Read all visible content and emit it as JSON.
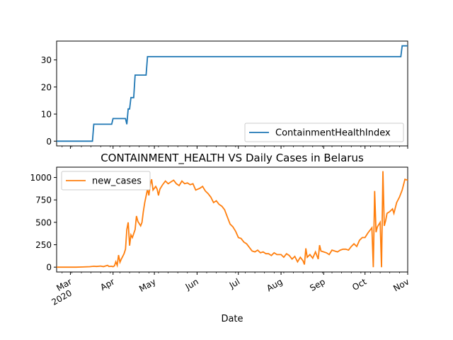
{
  "figure": {
    "title": "CONTAINMENT_HEALTH VS Daily Cases in Belarus",
    "xlabel": "Date"
  },
  "colors": {
    "series1": "#1f77b4",
    "series2": "#ff7f0e"
  },
  "chart_data": [
    {
      "type": "line",
      "title": "",
      "xlabel": "",
      "ylabel": "",
      "xlim": [
        "2020-02-20",
        "2020-11-01"
      ],
      "ylim": [
        -1.76,
        36.96
      ],
      "yticks": [
        0,
        10,
        20,
        30
      ],
      "grid": false,
      "legend": "lower right",
      "series": [
        {
          "name": "ContainmentHealthIndex",
          "color": "#1f77b4",
          "points": [
            [
              "2020-02-20",
              0
            ],
            [
              "2020-03-17",
              0
            ],
            [
              "2020-03-18",
              6.25
            ],
            [
              "2020-03-31",
              6.25
            ],
            [
              "2020-04-01",
              8.33
            ],
            [
              "2020-04-10",
              8.33
            ],
            [
              "2020-04-11",
              6.25
            ],
            [
              "2020-04-12",
              11.9
            ],
            [
              "2020-04-13",
              11.9
            ],
            [
              "2020-04-14",
              16.07
            ],
            [
              "2020-04-16",
              16.07
            ],
            [
              "2020-04-17",
              24.4
            ],
            [
              "2020-04-25",
              24.4
            ],
            [
              "2020-04-26",
              31.2
            ],
            [
              "2020-10-27",
              31.2
            ],
            [
              "2020-10-28",
              35.2
            ],
            [
              "2020-11-01",
              35.2
            ]
          ]
        }
      ]
    },
    {
      "type": "line",
      "title": "",
      "xlabel": "Date",
      "ylabel": "",
      "xlim": [
        "2020-02-20",
        "2020-11-01"
      ],
      "ylim": [
        -54,
        1115
      ],
      "yticks": [
        0,
        250,
        500,
        750,
        1000
      ],
      "xticks": [
        {
          "date": "2020-03-01",
          "label": "Mar",
          "sub": "2020"
        },
        {
          "date": "2020-04-01",
          "label": "Apr",
          "sub": ""
        },
        {
          "date": "2020-05-01",
          "label": "May",
          "sub": ""
        },
        {
          "date": "2020-06-01",
          "label": "Jun",
          "sub": ""
        },
        {
          "date": "2020-07-01",
          "label": "Jul",
          "sub": ""
        },
        {
          "date": "2020-08-01",
          "label": "Aug",
          "sub": ""
        },
        {
          "date": "2020-09-01",
          "label": "Sep",
          "sub": ""
        },
        {
          "date": "2020-10-01",
          "label": "Oct",
          "sub": ""
        },
        {
          "date": "2020-11-01",
          "label": "Nov",
          "sub": ""
        }
      ],
      "grid": false,
      "legend": "upper left",
      "series": [
        {
          "name": "new_cases",
          "color": "#ff7f0e",
          "points": [
            [
              "2020-02-20",
              0
            ],
            [
              "2020-03-05",
              0
            ],
            [
              "2020-03-10",
              2
            ],
            [
              "2020-03-15",
              5
            ],
            [
              "2020-03-18",
              10
            ],
            [
              "2020-03-20",
              8
            ],
            [
              "2020-03-23",
              12
            ],
            [
              "2020-03-25",
              6
            ],
            [
              "2020-03-28",
              20
            ],
            [
              "2020-03-29",
              8
            ],
            [
              "2020-03-31",
              10
            ],
            [
              "2020-04-01",
              5
            ],
            [
              "2020-04-02",
              15
            ],
            [
              "2020-04-03",
              60
            ],
            [
              "2020-04-04",
              20
            ],
            [
              "2020-04-05",
              135
            ],
            [
              "2020-04-06",
              55
            ],
            [
              "2020-04-07",
              90
            ],
            [
              "2020-04-09",
              150
            ],
            [
              "2020-04-10",
              200
            ],
            [
              "2020-04-11",
              420
            ],
            [
              "2020-04-12",
              500
            ],
            [
              "2020-04-13",
              240
            ],
            [
              "2020-04-14",
              360
            ],
            [
              "2020-04-15",
              330
            ],
            [
              "2020-04-17",
              420
            ],
            [
              "2020-04-18",
              570
            ],
            [
              "2020-04-19",
              510
            ],
            [
              "2020-04-21",
              460
            ],
            [
              "2020-04-22",
              500
            ],
            [
              "2020-04-23",
              620
            ],
            [
              "2020-04-24",
              720
            ],
            [
              "2020-04-26",
              870
            ],
            [
              "2020-04-27",
              800
            ],
            [
              "2020-04-28",
              920
            ],
            [
              "2020-04-29",
              980
            ],
            [
              "2020-04-30",
              860
            ],
            [
              "2020-05-02",
              900
            ],
            [
              "2020-05-03",
              870
            ],
            [
              "2020-05-04",
              800
            ],
            [
              "2020-05-05",
              870
            ],
            [
              "2020-05-07",
              920
            ],
            [
              "2020-05-09",
              960
            ],
            [
              "2020-05-11",
              930
            ],
            [
              "2020-05-13",
              950
            ],
            [
              "2020-05-15",
              970
            ],
            [
              "2020-05-17",
              930
            ],
            [
              "2020-05-19",
              910
            ],
            [
              "2020-05-21",
              960
            ],
            [
              "2020-05-23",
              930
            ],
            [
              "2020-05-25",
              940
            ],
            [
              "2020-05-27",
              920
            ],
            [
              "2020-05-29",
              930
            ],
            [
              "2020-05-31",
              860
            ],
            [
              "2020-06-03",
              880
            ],
            [
              "2020-06-05",
              900
            ],
            [
              "2020-06-07",
              850
            ],
            [
              "2020-06-09",
              820
            ],
            [
              "2020-06-11",
              780
            ],
            [
              "2020-06-13",
              720
            ],
            [
              "2020-06-15",
              740
            ],
            [
              "2020-06-17",
              700
            ],
            [
              "2020-06-19",
              680
            ],
            [
              "2020-06-21",
              640
            ],
            [
              "2020-06-23",
              560
            ],
            [
              "2020-06-25",
              480
            ],
            [
              "2020-06-27",
              450
            ],
            [
              "2020-06-29",
              400
            ],
            [
              "2020-07-01",
              330
            ],
            [
              "2020-07-03",
              320
            ],
            [
              "2020-07-05",
              280
            ],
            [
              "2020-07-07",
              260
            ],
            [
              "2020-07-09",
              220
            ],
            [
              "2020-07-11",
              180
            ],
            [
              "2020-07-13",
              170
            ],
            [
              "2020-07-15",
              190
            ],
            [
              "2020-07-17",
              160
            ],
            [
              "2020-07-19",
              170
            ],
            [
              "2020-07-21",
              150
            ],
            [
              "2020-07-23",
              150
            ],
            [
              "2020-07-25",
              130
            ],
            [
              "2020-07-27",
              160
            ],
            [
              "2020-07-29",
              140
            ],
            [
              "2020-08-01",
              140
            ],
            [
              "2020-08-03",
              110
            ],
            [
              "2020-08-05",
              150
            ],
            [
              "2020-08-07",
              130
            ],
            [
              "2020-08-09",
              90
            ],
            [
              "2020-08-11",
              120
            ],
            [
              "2020-08-13",
              60
            ],
            [
              "2020-08-15",
              110
            ],
            [
              "2020-08-17",
              70
            ],
            [
              "2020-08-18",
              30
            ],
            [
              "2020-08-19",
              210
            ],
            [
              "2020-08-20",
              110
            ],
            [
              "2020-08-22",
              140
            ],
            [
              "2020-08-24",
              100
            ],
            [
              "2020-08-26",
              170
            ],
            [
              "2020-08-28",
              90
            ],
            [
              "2020-08-29",
              245
            ],
            [
              "2020-08-30",
              180
            ],
            [
              "2020-09-01",
              170
            ],
            [
              "2020-09-03",
              160
            ],
            [
              "2020-09-05",
              140
            ],
            [
              "2020-09-07",
              190
            ],
            [
              "2020-09-09",
              180
            ],
            [
              "2020-09-11",
              170
            ],
            [
              "2020-09-13",
              190
            ],
            [
              "2020-09-15",
              200
            ],
            [
              "2020-09-17",
              200
            ],
            [
              "2020-09-19",
              190
            ],
            [
              "2020-09-21",
              230
            ],
            [
              "2020-09-23",
              260
            ],
            [
              "2020-09-25",
              230
            ],
            [
              "2020-09-27",
              300
            ],
            [
              "2020-09-29",
              330
            ],
            [
              "2020-10-01",
              330
            ],
            [
              "2020-10-03",
              380
            ],
            [
              "2020-10-05",
              420
            ],
            [
              "2020-10-06",
              440
            ],
            [
              "2020-10-07",
              0
            ],
            [
              "2020-10-08",
              850
            ],
            [
              "2020-10-09",
              390
            ],
            [
              "2020-10-10",
              450
            ],
            [
              "2020-10-12",
              500
            ],
            [
              "2020-10-13",
              0
            ],
            [
              "2020-10-14",
              1070
            ],
            [
              "2020-10-15",
              460
            ],
            [
              "2020-10-16",
              520
            ],
            [
              "2020-10-17",
              600
            ],
            [
              "2020-10-19",
              620
            ],
            [
              "2020-10-21",
              650
            ],
            [
              "2020-10-22",
              600
            ],
            [
              "2020-10-24",
              720
            ],
            [
              "2020-10-26",
              780
            ],
            [
              "2020-10-28",
              860
            ],
            [
              "2020-10-30",
              980
            ],
            [
              "2020-11-01",
              970
            ]
          ]
        }
      ]
    }
  ]
}
